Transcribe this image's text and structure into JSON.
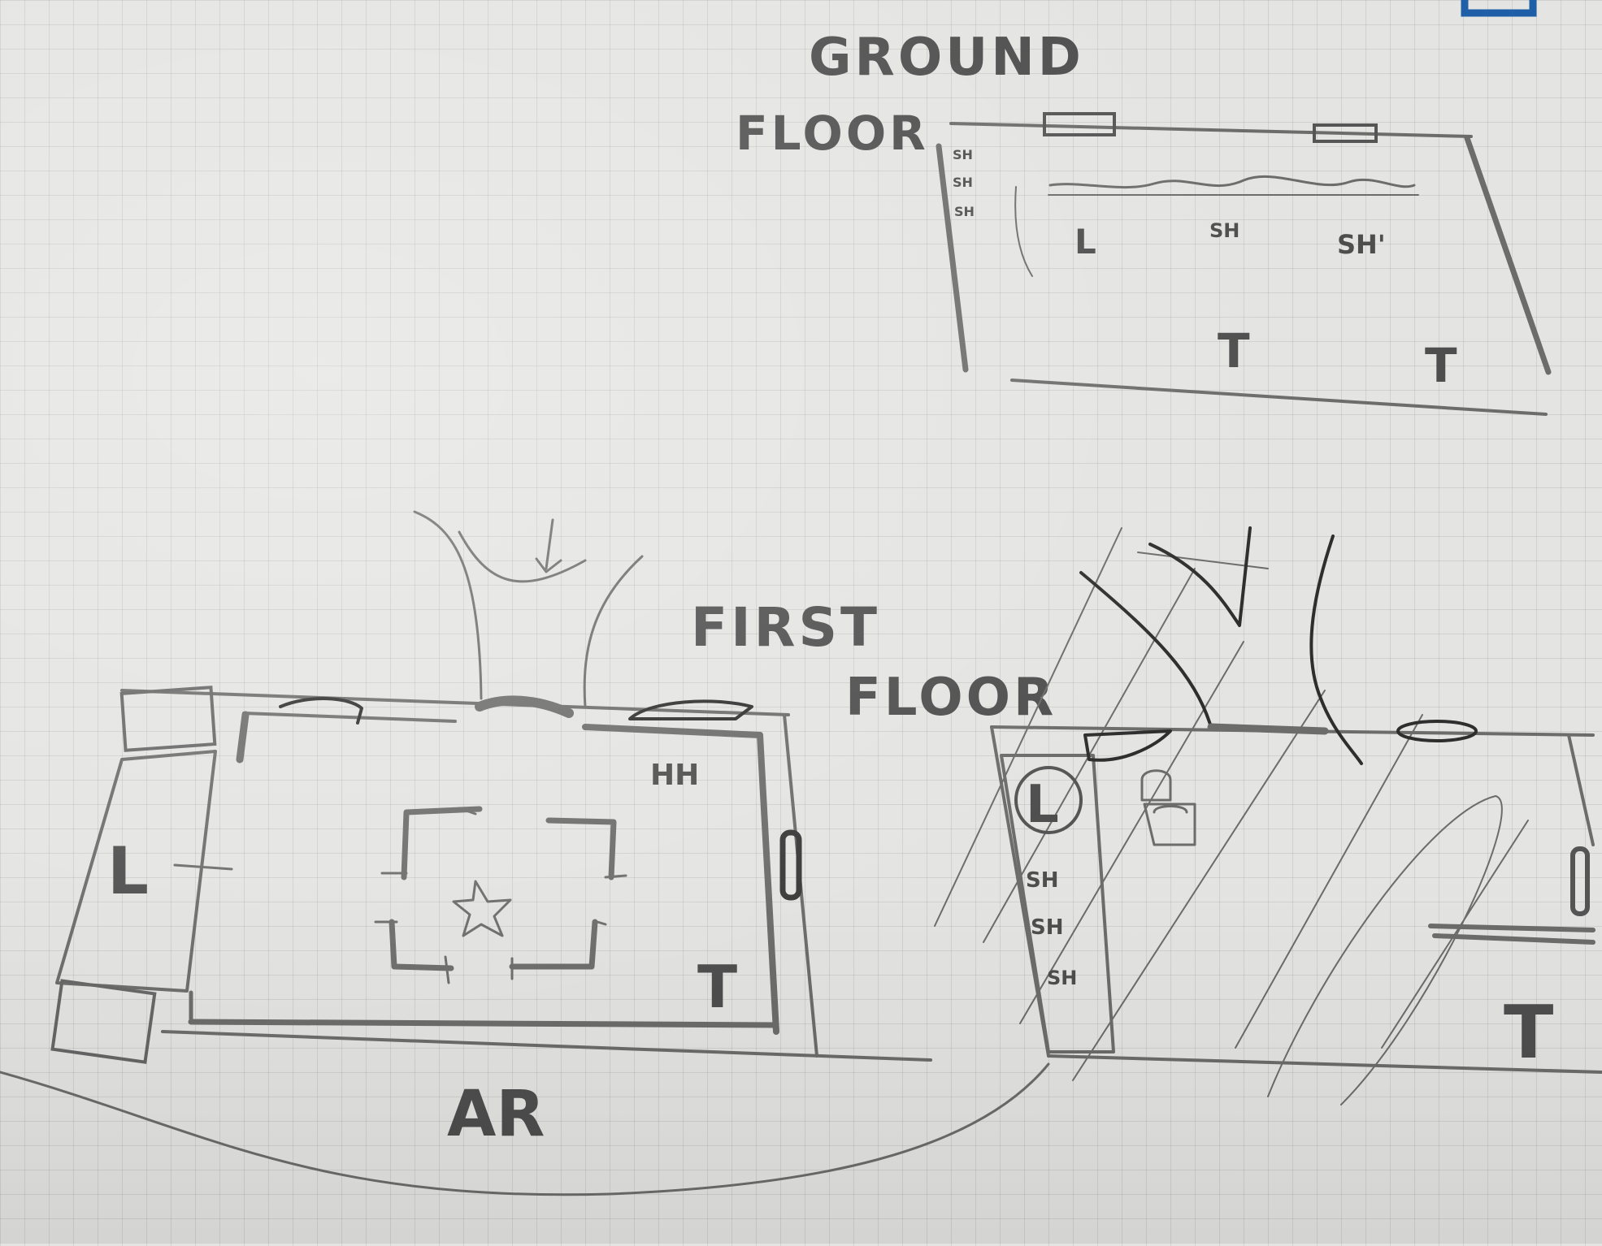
{
  "plans": {
    "ground": {
      "title_line1": "GROUND",
      "title_line2": "FLOOR",
      "labels": {
        "sh_1": "SH",
        "sh_2": "SH",
        "sh_3": "SH",
        "l": "L",
        "sh_4": "SH",
        "sh_5": "SH'",
        "t_1": "T",
        "t_2": "T"
      }
    },
    "first_left": {
      "labels": {
        "hh": "HH",
        "l": "L",
        "t": "T",
        "ar": "AR"
      }
    },
    "first_right": {
      "title_line1": "FIRST",
      "title_line2": "FLOOR",
      "labels": {
        "l": "L",
        "sh_1": "SH",
        "sh_2": "SH",
        "sh_3": "SH",
        "t": "T"
      }
    }
  },
  "colors": {
    "paper": "#e4e4e2",
    "grid": "#c9c9c7",
    "pencil": "#6c6c6a",
    "dark": "#2e2e2e",
    "corner": "#1f5fa8"
  }
}
